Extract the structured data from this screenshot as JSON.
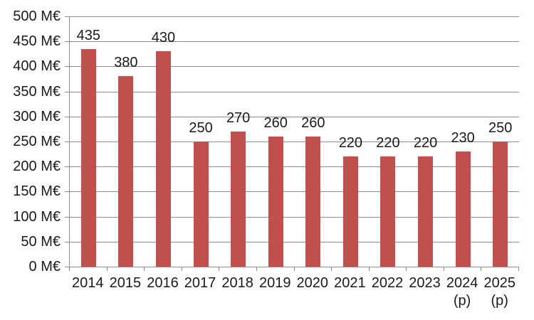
{
  "chart_data": {
    "type": "bar",
    "title": "",
    "xlabel": "",
    "ylabel": "",
    "categories": [
      "2014",
      "2015",
      "2016",
      "2017",
      "2018",
      "2019",
      "2020",
      "2021",
      "2022",
      "2023",
      "2024 (p)",
      "2025 (p)"
    ],
    "values": [
      435,
      380,
      430,
      250,
      270,
      260,
      260,
      220,
      220,
      220,
      230,
      250
    ],
    "data_labels": [
      "435",
      "380",
      "430",
      "250",
      "270",
      "260",
      "260",
      "220",
      "220",
      "220",
      "230",
      "250"
    ],
    "y_tick_labels": [
      "500 M€",
      "450 M€",
      "400 M€",
      "350 M€",
      "300 M€",
      "250 M€",
      "200 M€",
      "150 M€",
      "100 M€",
      "50 M€",
      "0 M€"
    ],
    "ylim": [
      0,
      500
    ],
    "y_step": 50,
    "unit": "M€",
    "grid": true,
    "legend": null,
    "colors": {
      "bar": "#C0504D",
      "gridline": "#8C8C8C",
      "axis": "#8C8C8C",
      "text": "#1A1A1A",
      "background": "#FFFFFF"
    }
  }
}
